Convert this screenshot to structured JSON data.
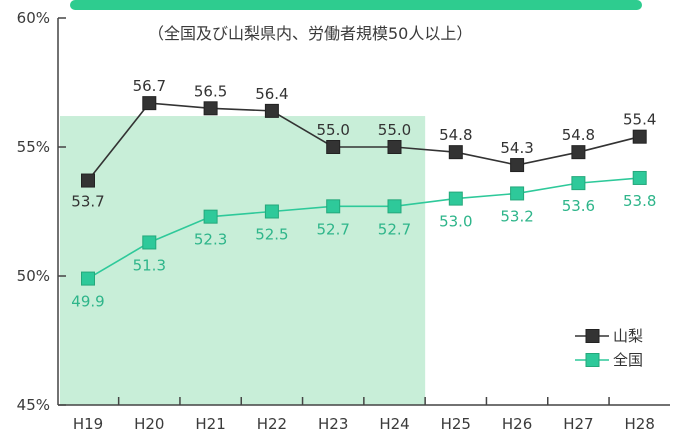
{
  "chart_data": {
    "type": "line",
    "subtitle": "（全国及び山梨県内、労働者規模50人以上）",
    "categories": [
      "H19",
      "H20",
      "H21",
      "H22",
      "H23",
      "H24",
      "H25",
      "H26",
      "H27",
      "H28"
    ],
    "series": [
      {
        "name": "山梨",
        "values": [
          53.7,
          56.7,
          56.5,
          56.4,
          55.0,
          55.0,
          54.8,
          54.3,
          54.8,
          55.4
        ],
        "labels": [
          "53.7",
          "56.7",
          "56.5",
          "56.4",
          "55.0",
          "55.0",
          "54.8",
          "54.3",
          "54.8",
          "55.4"
        ],
        "color": "#333333"
      },
      {
        "name": "全国",
        "values": [
          49.9,
          51.3,
          52.3,
          52.5,
          52.7,
          52.7,
          53.0,
          53.2,
          53.6,
          53.8
        ],
        "labels": [
          "49.9",
          "51.3",
          "52.3",
          "52.5",
          "52.7",
          "52.7",
          "53.0",
          "53.2",
          "53.6",
          "53.8"
        ],
        "color": "#2ec99a"
      }
    ],
    "ylim": [
      45,
      60
    ],
    "yticks": [
      {
        "value": 45,
        "label": "45%"
      },
      {
        "value": 50,
        "label": "50%"
      },
      {
        "value": 55,
        "label": "55%"
      },
      {
        "value": 60,
        "label": "60%"
      }
    ],
    "shaded_region": {
      "from": "H19",
      "to": "H24",
      "y_top": 56.2,
      "color": "#c8eed8"
    },
    "header_band_color": "#2ecc8f",
    "legend_position": "bottom-right",
    "grid": false
  }
}
